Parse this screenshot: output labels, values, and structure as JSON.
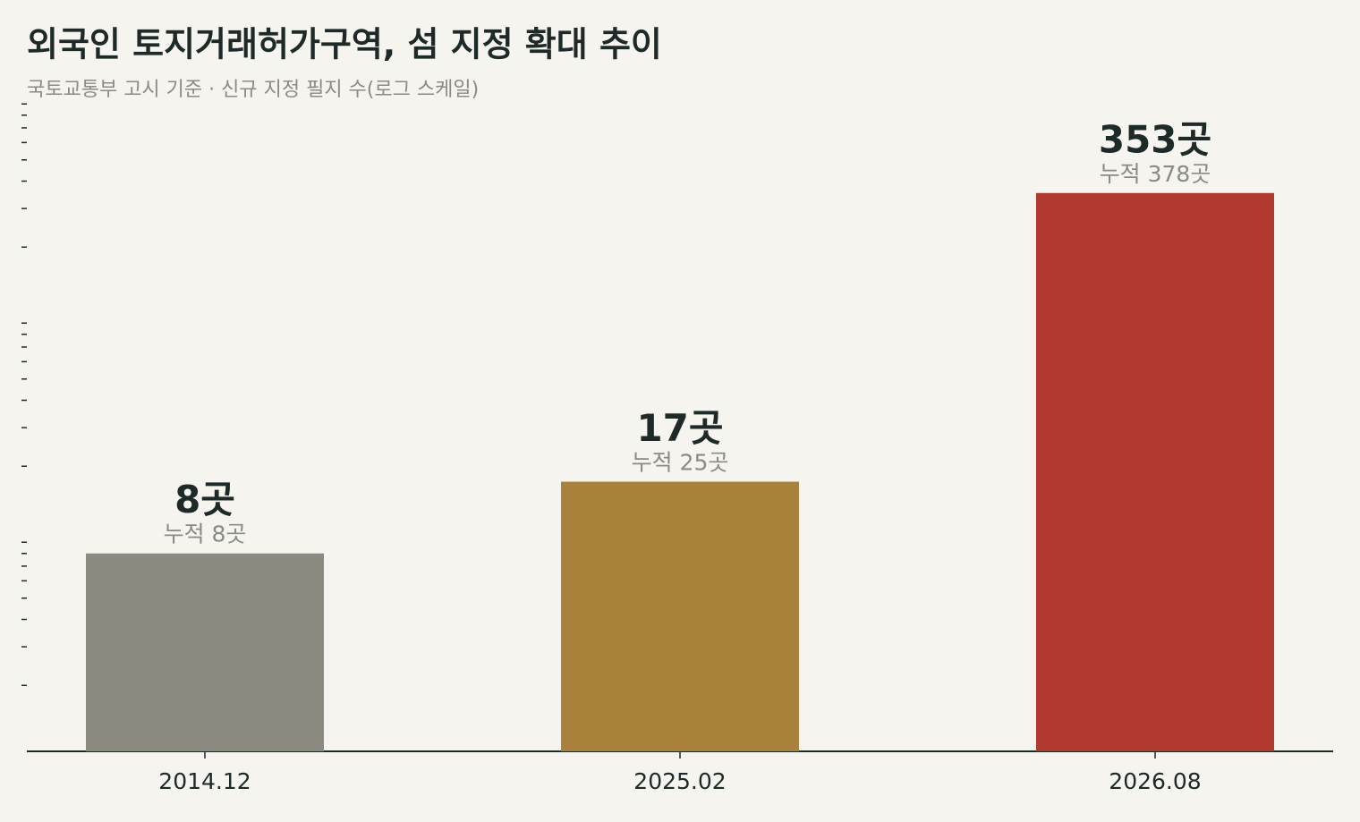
{
  "chart_data": {
    "type": "bar",
    "title": "외국인 토지거래허가구역, 섬 지정 확대 추이",
    "subtitle": "국토교통부 고시 기준 · 신규 지정 필지 수(로그 스케일)",
    "categories": [
      "2014.12",
      "2025.02",
      "2026.08"
    ],
    "values": [
      8,
      17,
      353
    ],
    "value_labels": [
      "8곳",
      "17곳",
      "353곳"
    ],
    "cumulative": [
      8,
      25,
      378
    ],
    "cumulative_labels": [
      "누적 8곳",
      "누적 25곳",
      "누적 378곳"
    ],
    "colors": [
      "#8a8a80",
      "#a8823a",
      "#b03a30"
    ],
    "log_scale": true,
    "ylim": [
      1,
      1000
    ],
    "yticks": [
      2,
      3,
      4,
      5,
      6,
      7,
      8,
      9,
      20,
      30,
      40,
      50,
      60,
      70,
      80,
      90,
      200,
      300,
      400,
      500,
      600,
      700,
      800,
      900
    ],
    "ytick_labels": false
  }
}
